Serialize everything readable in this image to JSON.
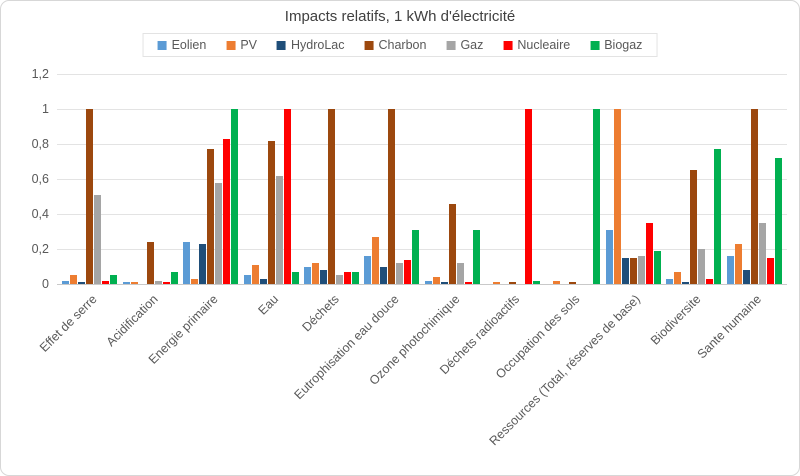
{
  "title": "Impacts relatifs, 1 kWh d'électricité",
  "chart_data": {
    "type": "bar",
    "title": "Impacts relatifs, 1 kWh d'électricité",
    "xlabel": "",
    "ylabel": "",
    "ylim": [
      0,
      1.2
    ],
    "grid": true,
    "legend_position": "top",
    "y_ticks": [
      "1,2",
      "1",
      "0,8",
      "0,6",
      "0,4",
      "0,2",
      "0"
    ],
    "y_tick_values": [
      1.2,
      1.0,
      0.8,
      0.6,
      0.4,
      0.2,
      0
    ],
    "categories": [
      "Effet de serre",
      "Acidification",
      "Energie primaire",
      "Eau",
      "Déchets",
      "Eutrophisation eau douce",
      "Ozone photochimique",
      "Déchets radioactifs",
      "Occupation des sols",
      "Ressources (Total, réserves de base)",
      "Biodiversite",
      "Sante humaine"
    ],
    "series": [
      {
        "name": "Eolien",
        "color": "#5B9BD5",
        "values": [
          0.02,
          0.01,
          0.24,
          0.05,
          0.1,
          0.16,
          0.02,
          0.0,
          0.0,
          0.31,
          0.03,
          0.16
        ]
      },
      {
        "name": "PV",
        "color": "#ED7D31",
        "values": [
          0.05,
          0.01,
          0.03,
          0.11,
          0.12,
          0.27,
          0.04,
          0.01,
          0.02,
          1.0,
          0.07,
          0.23
        ]
      },
      {
        "name": "HydroLac",
        "color": "#1F4E79",
        "values": [
          0.01,
          0.0,
          0.23,
          0.03,
          0.08,
          0.1,
          0.01,
          0.0,
          0.0,
          0.15,
          0.01,
          0.08
        ]
      },
      {
        "name": "Charbon",
        "color": "#9C480E",
        "values": [
          1.0,
          0.24,
          0.77,
          0.82,
          1.0,
          1.0,
          0.46,
          0.01,
          0.01,
          0.15,
          0.65,
          1.0
        ]
      },
      {
        "name": "Gaz",
        "color": "#A5A5A5",
        "values": [
          0.51,
          0.02,
          0.58,
          0.62,
          0.05,
          0.12,
          0.12,
          0.0,
          0.0,
          0.16,
          0.2,
          0.35
        ]
      },
      {
        "name": "Nucleaire",
        "color": "#FF0000",
        "values": [
          0.02,
          0.01,
          0.83,
          1.0,
          0.07,
          0.14,
          0.01,
          1.0,
          0.0,
          0.35,
          0.03,
          0.15
        ]
      },
      {
        "name": "Biogaz",
        "color": "#00B050",
        "values": [
          0.05,
          0.07,
          1.0,
          0.07,
          0.07,
          0.31,
          0.31,
          0.02,
          1.0,
          0.19,
          0.77,
          0.72
        ]
      }
    ]
  },
  "colors": {
    "grid": "#E3E3E3",
    "axis": "#C9C9C9",
    "text": "#595959",
    "title_text": "#404040"
  }
}
